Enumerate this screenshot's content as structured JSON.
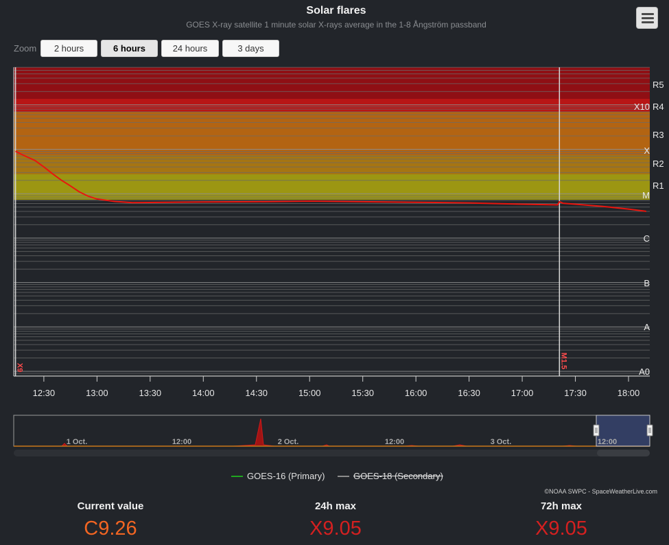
{
  "header": {
    "title": "Solar flares",
    "subtitle": "GOES X-ray satellite 1 minute solar X-rays average in the 1-8 Ångström passband"
  },
  "zoom": {
    "label": "Zoom",
    "buttons": [
      "2 hours",
      "6 hours",
      "24 hours",
      "3 days"
    ],
    "active": "6 hours"
  },
  "chart_data": {
    "type": "line",
    "y_scale": "log",
    "ylabel": "",
    "x_unit": "time (UTC)",
    "x_ticks": [
      "12:30",
      "13:00",
      "13:30",
      "14:00",
      "14:30",
      "15:00",
      "15:30",
      "16:00",
      "16:30",
      "17:00",
      "17:30",
      "18:00"
    ],
    "xlim": [
      "12:13",
      "18:12"
    ],
    "ylim": [
      "A0",
      "above R5"
    ],
    "grid": true,
    "flare_class_labels": [
      "X10",
      "X",
      "M",
      "C",
      "B",
      "A",
      "A0"
    ],
    "radio_blackout_labels": [
      "R5",
      "R4",
      "R3",
      "R2",
      "R1"
    ],
    "bands": [
      {
        "name": "R5",
        "color": "#8f0f14"
      },
      {
        "name": "R4",
        "color": "#b81616"
      },
      {
        "name": "R3",
        "color": "#b36412"
      },
      {
        "name": "R2",
        "color": "#a67512"
      },
      {
        "name": "R1",
        "color": "#9c9612"
      }
    ],
    "series": [
      {
        "name": "GOES-16 (Primary)",
        "color": "#e8150e",
        "x": [
          "12:14",
          "12:18",
          "12:25",
          "12:30",
          "12:35",
          "12:40",
          "12:45",
          "12:50",
          "12:55",
          "13:00",
          "13:10",
          "13:20",
          "13:40",
          "14:00",
          "14:30",
          "15:00",
          "15:30",
          "16:00",
          "16:30",
          "17:00",
          "17:20",
          "17:21",
          "17:23",
          "17:30",
          "17:45",
          "18:00",
          "18:10"
        ],
        "values": [
          "X9.05",
          "X7.5",
          "X5.6",
          "X4.0",
          "X2.8",
          "X2.0",
          "M15",
          "M11",
          "M8.8",
          "M7.6",
          "M6.7",
          "M6.3",
          "M6.4",
          "M6.5",
          "M6.6",
          "M6.8",
          "M6.6",
          "M6.4",
          "M6.2",
          "M5.8",
          "M5.6",
          "M6.6",
          "M6.1",
          "M5.8",
          "M5.2",
          "M4.5",
          "M4.0"
        ]
      },
      {
        "name": "GOES-18 (Secondary)",
        "color": "#8c8c8c",
        "hidden": true,
        "values": []
      }
    ],
    "annotations": [
      {
        "label": "X9",
        "time": "12:14",
        "color": "#ff4d4d"
      },
      {
        "label": "M1.5",
        "time": "17:21",
        "color": "#ff4d4d"
      }
    ],
    "navigator": {
      "labels": [
        "1 Oct.",
        "12:00",
        "2 Oct.",
        "12:00",
        "3 Oct.",
        "12:00"
      ],
      "selected_range": [
        "12:13",
        "18:12"
      ]
    }
  },
  "legend": {
    "primary": "GOES-16 (Primary)",
    "secondary": "GOES-18 (Secondary)"
  },
  "credits": "©NOAA SWPC - SpaceWeatherLive.com",
  "stats": {
    "current": {
      "label": "Current value",
      "value": "C9.26",
      "color": "#f26522"
    },
    "max24": {
      "label": "24h max",
      "value": "X9.05",
      "color": "#d42020"
    },
    "max72": {
      "label": "72h max",
      "value": "X9.05",
      "color": "#d42020"
    }
  }
}
